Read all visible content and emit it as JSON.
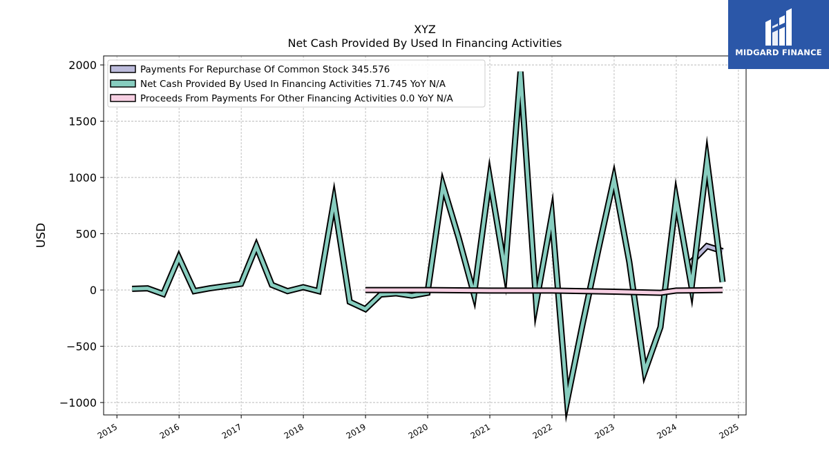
{
  "header": {
    "title": "XYZ",
    "subtitle": "Net Cash Provided By Used In Financing Activities"
  },
  "brand": {
    "name": "MIDGARD FINANCE",
    "color": "#2b57a8"
  },
  "chart_data": {
    "type": "line",
    "title": "XYZ",
    "subtitle": "Net Cash Provided By Used In Financing Activities",
    "ylabel": "USD",
    "xlabel": "",
    "xlim": [
      "2014-10-15",
      "2025-02-15"
    ],
    "ylim": [
      -1110,
      2080
    ],
    "y_ticks": [
      -1000,
      -500,
      0,
      500,
      1000,
      1500,
      2000
    ],
    "y_tick_labels": [
      "−1000",
      "−500",
      "0",
      "500",
      "1000",
      "1500",
      "2000"
    ],
    "x_ticks": [
      "2015-01-01",
      "2016-01-01",
      "2017-01-01",
      "2018-01-01",
      "2019-01-01",
      "2020-01-01",
      "2021-01-01",
      "2022-01-01",
      "2023-01-01",
      "2024-01-01",
      "2025-01-01"
    ],
    "x_tick_labels": [
      "2015",
      "2016",
      "2017",
      "2018",
      "2019",
      "2020",
      "2021",
      "2022",
      "2023",
      "2024",
      "2025"
    ],
    "grid": true,
    "legend_position": "top-left",
    "series": [
      {
        "name": "Payments For Repurchase Of Common Stock",
        "legend_label": "Payments For Repurchase Of Common Stock  345.576",
        "color": "#bcbbdb",
        "x": [
          "2024-03-31",
          "2024-06-30",
          "2024-09-30"
        ],
        "y": [
          250,
          390,
          346
        ]
      },
      {
        "name": "Net Cash Provided By Used In Financing Activities",
        "legend_label": "Net Cash Provided By Used In Financing Activities  71.745 YoY N/A",
        "color": "#87cdbf",
        "x": [
          "2015-03-31",
          "2015-06-30",
          "2015-09-30",
          "2015-12-31",
          "2016-03-31",
          "2016-06-30",
          "2016-09-30",
          "2016-12-31",
          "2017-03-31",
          "2017-06-30",
          "2017-09-30",
          "2017-12-31",
          "2018-03-31",
          "2018-06-30",
          "2018-09-30",
          "2018-12-31",
          "2019-03-31",
          "2019-06-30",
          "2019-09-30",
          "2019-12-31",
          "2020-03-31",
          "2020-06-30",
          "2020-09-30",
          "2020-12-31",
          "2021-03-31",
          "2021-06-30",
          "2021-09-30",
          "2021-12-31",
          "2022-03-31",
          "2022-06-30",
          "2022-09-30",
          "2022-12-31",
          "2023-03-31",
          "2023-06-30",
          "2023-09-30",
          "2023-12-31",
          "2024-03-31",
          "2024-06-30",
          "2024-09-30"
        ],
        "y": [
          10,
          15,
          -35,
          290,
          -10,
          15,
          35,
          55,
          390,
          45,
          -10,
          25,
          -10,
          795,
          -105,
          -170,
          -40,
          -30,
          -50,
          -25,
          930,
          470,
          -40,
          995,
          175,
          1940,
          -115,
          660,
          -985,
          -300,
          355,
          990,
          250,
          -725,
          -330,
          810,
          25,
          1150,
          70
        ]
      },
      {
        "name": "Proceeds From Payments For Other Financing Activities",
        "legend_label": "Proceeds From Payments For Other Financing Activities  0.0 YoY N/A",
        "color": "#f6cfe2",
        "x": [
          "2018-12-31",
          "2019-12-31",
          "2020-12-31",
          "2021-12-31",
          "2022-12-31",
          "2023-09-30",
          "2023-12-31",
          "2024-09-30"
        ],
        "y": [
          0,
          0,
          -5,
          -5,
          -15,
          -25,
          -5,
          0
        ]
      }
    ]
  }
}
